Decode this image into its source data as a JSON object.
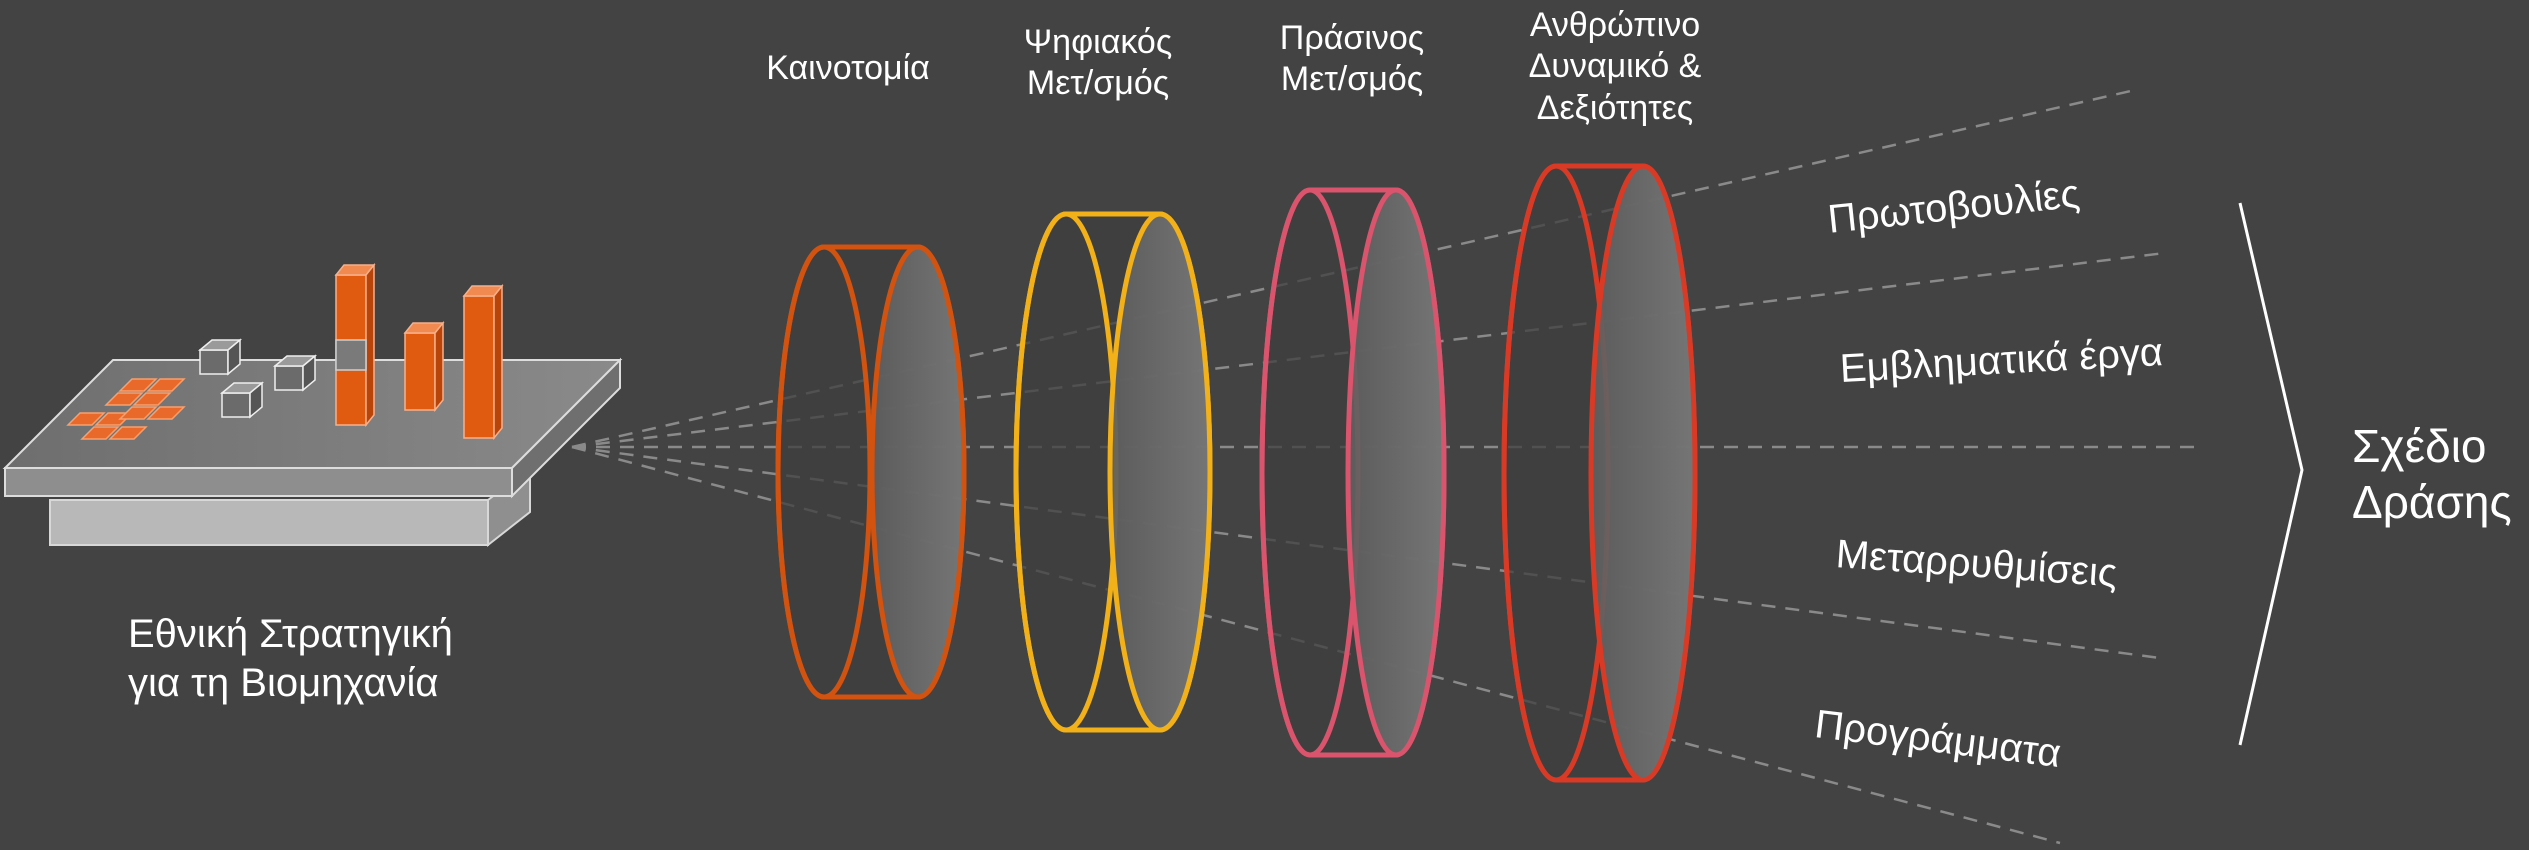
{
  "source": {
    "label": "Εθνική Στρατηγική\nγια τη Βιομηχανία"
  },
  "lenses": [
    {
      "id": "innovation",
      "label": "Καινοτομία",
      "color": "#d2520f"
    },
    {
      "id": "digital",
      "label": "Ψηφιακός\nΜετ/σμός",
      "color": "#f2b118"
    },
    {
      "id": "green",
      "label": "Πράσινος\nΜετ/σμός",
      "color": "#d9546c"
    },
    {
      "id": "human",
      "label": "Ανθρώπινο\nΔυναμικό &\nΔεξιότητες",
      "color": "#d93a26"
    }
  ],
  "outputs": [
    {
      "id": "initiatives",
      "label": "Πρωτοβουλίες"
    },
    {
      "id": "flagship",
      "label": "Εμβληματικά έργα"
    },
    {
      "id": "reforms",
      "label": "Μεταρρυθμίσεις"
    },
    {
      "id": "programs",
      "label": "Προγράμματα"
    }
  ],
  "result": {
    "label": "Σχέδιο\nΔράσης"
  },
  "colors": {
    "background": "#434343",
    "rays": "#8a8a8a",
    "bars": "#e05a10"
  }
}
